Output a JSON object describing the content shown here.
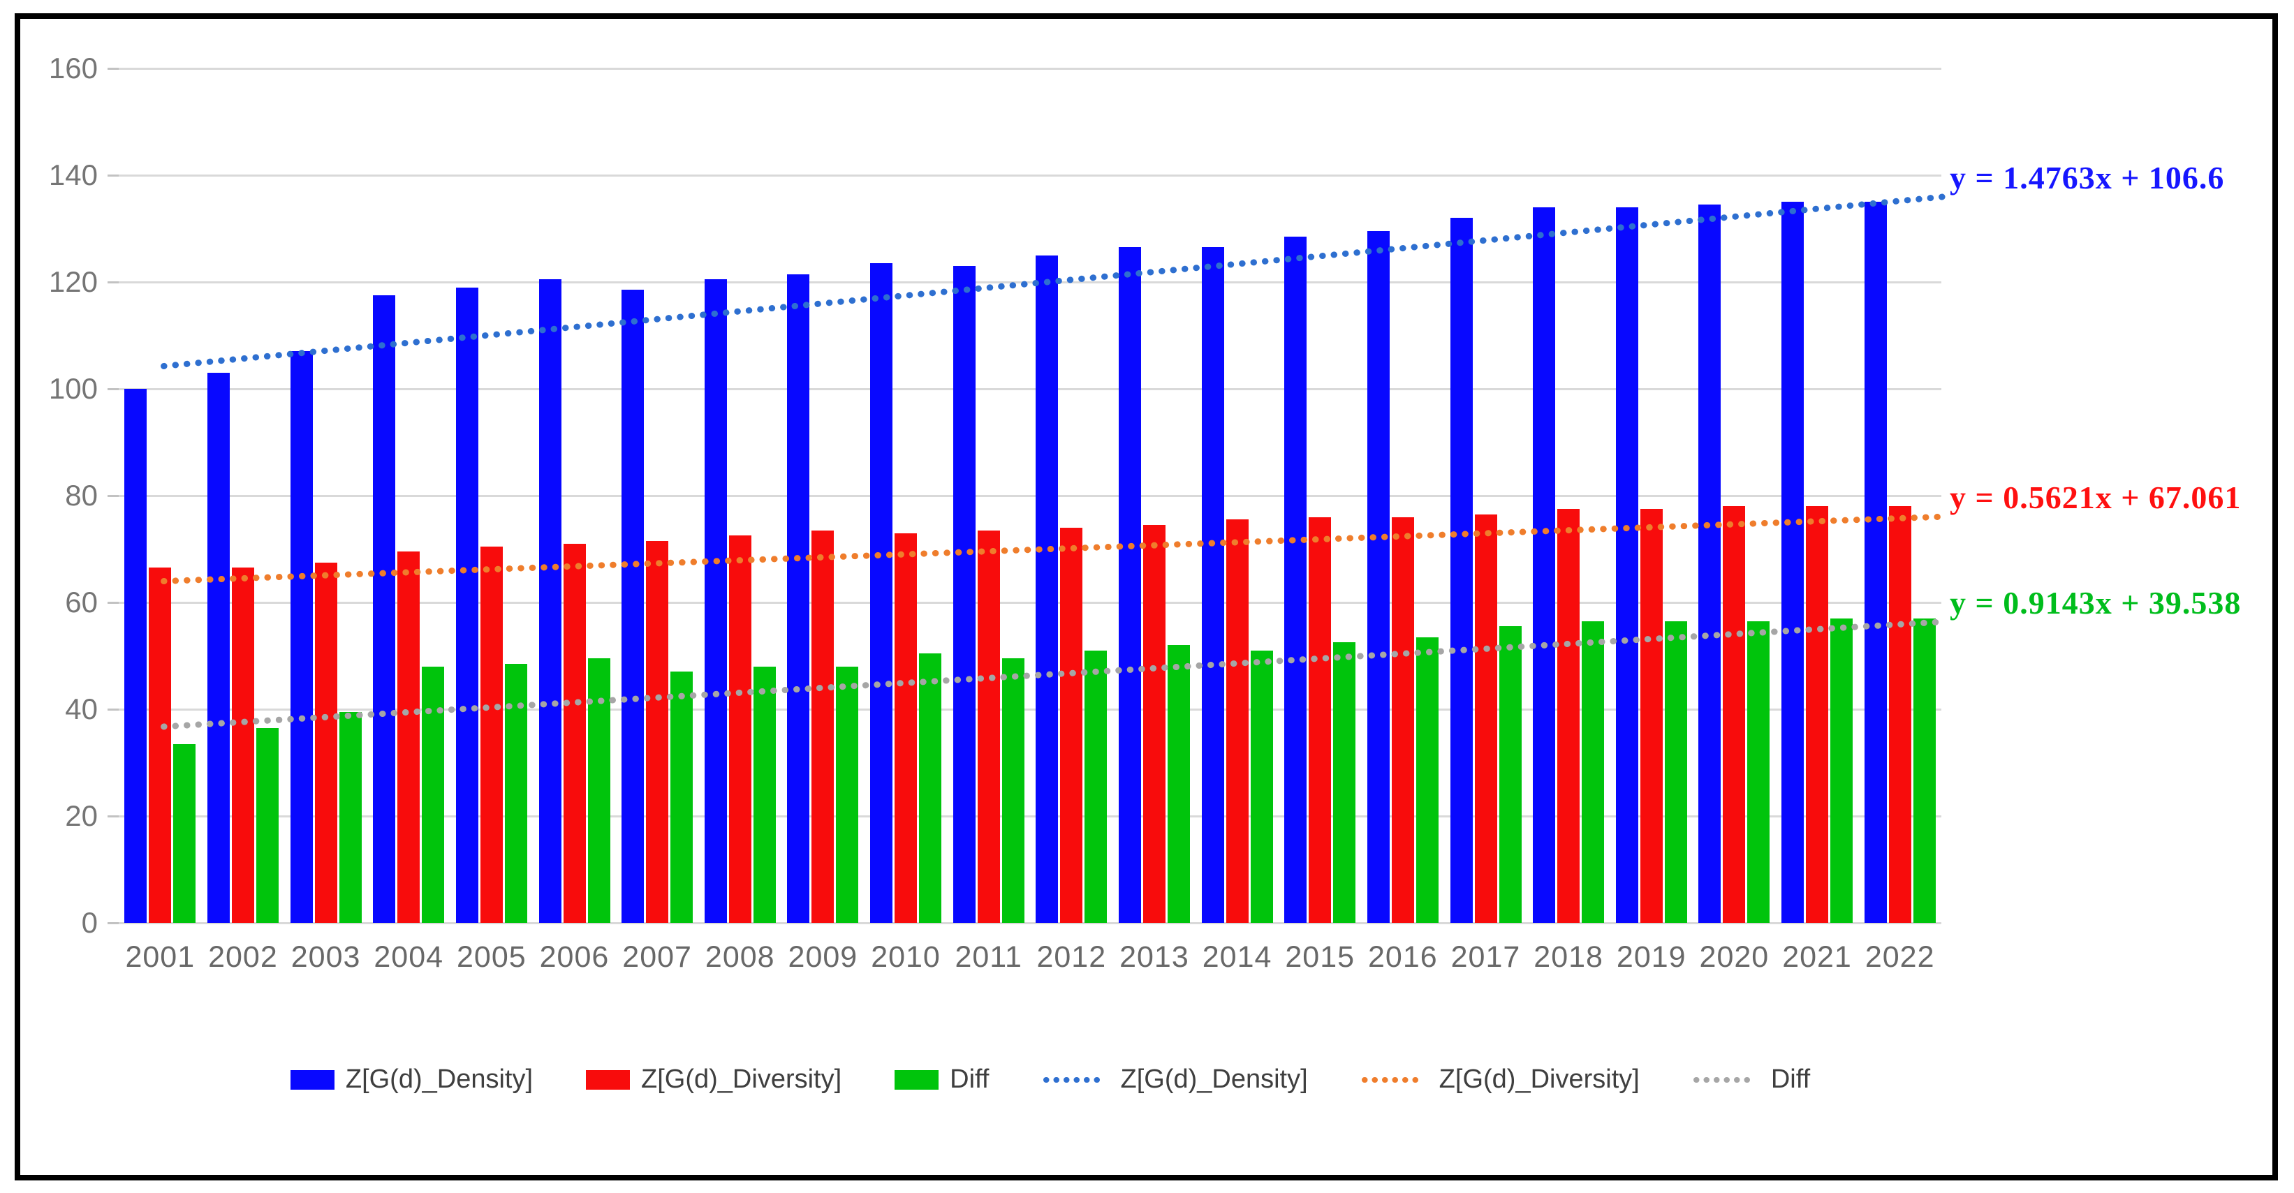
{
  "figure": {
    "background": "#ffffff",
    "border_color": "#000000"
  },
  "chart_data": {
    "type": "bar",
    "title": "",
    "xlabel": "",
    "ylabel": "",
    "ylim": [
      0,
      160
    ],
    "ytick_step": 20,
    "grid": true,
    "legend_position": "bottom",
    "categories": [
      "2001",
      "2002",
      "2003",
      "2004",
      "2005",
      "2006",
      "2007",
      "2008",
      "2009",
      "2010",
      "2011",
      "2012",
      "2013",
      "2014",
      "2015",
      "2016",
      "2017",
      "2018",
      "2019",
      "2020",
      "2021",
      "2022"
    ],
    "series": [
      {
        "name": "Z[G(d)_Density]",
        "color": "#0808ff",
        "values": [
          100,
          103,
          107,
          117.5,
          119,
          120.5,
          118.5,
          120.5,
          121.5,
          123.5,
          123,
          125,
          126.5,
          126.5,
          128.5,
          129.5,
          132,
          134,
          134,
          134.5,
          135,
          135
        ]
      },
      {
        "name": "Z[G(d)_Diversity]",
        "color": "#f80c0c",
        "values": [
          66.5,
          66.5,
          67.5,
          69.5,
          70.5,
          71,
          71.5,
          72.5,
          73.5,
          73,
          73.5,
          74,
          74.5,
          75.5,
          76,
          76,
          76.5,
          77.5,
          77.5,
          78,
          78,
          78
        ]
      },
      {
        "name": "Diff",
        "color": "#00c40c",
        "values": [
          33.5,
          36.5,
          39.5,
          48,
          48.5,
          49.5,
          47,
          48,
          48,
          50.5,
          49.5,
          51,
          52,
          51,
          52.5,
          53.5,
          55.5,
          56.5,
          56.5,
          56.5,
          57,
          57
        ]
      }
    ],
    "trendlines": [
      {
        "name": "Z[G(d)_Density]",
        "color": "#2e6fd0",
        "slope": 1.4763,
        "intercept": 106.6,
        "equation": "y = 1.4763x + 106.6",
        "equation_color": "#1616ff"
      },
      {
        "name": "Z[G(d)_Diversity]",
        "color": "#ef7d2c",
        "slope": 0.5621,
        "intercept": 67.061,
        "equation": "y = 0.5621x + 67.061",
        "equation_color": "#ff1010"
      },
      {
        "name": "Diff",
        "color": "#a6a6a6",
        "slope": 0.9143,
        "intercept": 39.538,
        "equation": "y = 0.9143x + 39.538",
        "equation_color": "#00bd1c"
      }
    ]
  },
  "legend": {
    "items": [
      {
        "type": "bar",
        "label": "Z[G(d)_Density]",
        "color": "#0808ff"
      },
      {
        "type": "bar",
        "label": "Z[G(d)_Diversity]",
        "color": "#f80c0c"
      },
      {
        "type": "bar",
        "label": "Diff",
        "color": "#00c40c"
      },
      {
        "type": "dots",
        "label": "Z[G(d)_Density]",
        "color": "#2e6fd0"
      },
      {
        "type": "dots",
        "label": "Z[G(d)_Diversity]",
        "color": "#ef7d2c"
      },
      {
        "type": "dots",
        "label": "Diff",
        "color": "#a6a6a6"
      }
    ]
  }
}
